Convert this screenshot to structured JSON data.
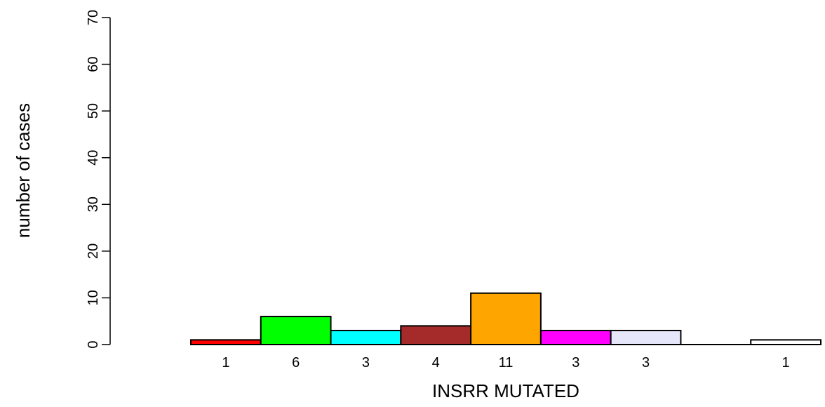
{
  "chart_data": {
    "type": "bar",
    "xlabel": "INSRR MUTATED",
    "ylabel": "number of cases",
    "ylim": [
      0,
      70
    ],
    "yticks": [
      0,
      10,
      20,
      30,
      40,
      50,
      60,
      70
    ],
    "grid": false,
    "legend": "none",
    "bars": [
      {
        "value": 1,
        "label": "1",
        "color": "#ff0000"
      },
      {
        "value": 6,
        "label": "6",
        "color": "#00ff00"
      },
      {
        "value": 3,
        "label": "3",
        "color": "#00ffff"
      },
      {
        "value": 4,
        "label": "4",
        "color": "#a52a2a"
      },
      {
        "value": 11,
        "label": "11",
        "color": "#ffa500"
      },
      {
        "value": 3,
        "label": "3",
        "color": "#ff00ff"
      },
      {
        "value": 3,
        "label": "3",
        "color": "#e6e6fa"
      },
      {
        "value": 0,
        "label": "",
        "color": "#ffffff"
      },
      {
        "value": 1,
        "label": "1",
        "color": "#ffffff"
      }
    ]
  }
}
